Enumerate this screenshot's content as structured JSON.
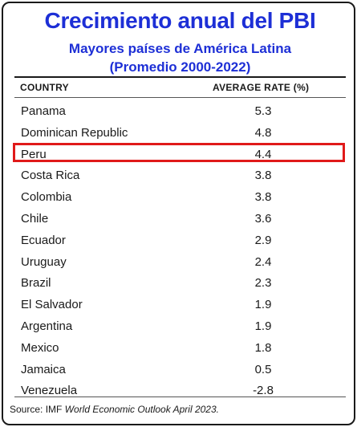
{
  "chart_data": {
    "type": "table",
    "title": "Crecimiento anual del PBI",
    "subtitle_line1": "Mayores países de América Latina",
    "subtitle_line2": "(Promedio 2000-2022)",
    "columns": [
      "COUNTRY",
      "AVERAGE RATE (%)"
    ],
    "rows": [
      {
        "country": "Panama",
        "rate": "5.3"
      },
      {
        "country": "Dominican Republic",
        "rate": "4.8"
      },
      {
        "country": "Peru",
        "rate": "4.4"
      },
      {
        "country": "Costa Rica",
        "rate": "3.8"
      },
      {
        "country": "Colombia",
        "rate": "3.8"
      },
      {
        "country": "Chile",
        "rate": "3.6"
      },
      {
        "country": "Ecuador",
        "rate": "2.9"
      },
      {
        "country": "Uruguay",
        "rate": "2.4"
      },
      {
        "country": "Brazil",
        "rate": "2.3"
      },
      {
        "country": "El Salvador",
        "rate": "1.9"
      },
      {
        "country": "Argentina",
        "rate": "1.9"
      },
      {
        "country": "Mexico",
        "rate": "1.8"
      },
      {
        "country": "Jamaica",
        "rate": "0.5"
      },
      {
        "country": "Venezuela",
        "rate": "-2.8"
      }
    ],
    "highlighted_country": "Peru",
    "source_prefix": "Source: IMF ",
    "source_title": "World Economic Outlook April 2023."
  },
  "colors": {
    "title": "#1d2fd6",
    "highlight_border": "#e01a1a",
    "text": "#1a1a1a"
  }
}
